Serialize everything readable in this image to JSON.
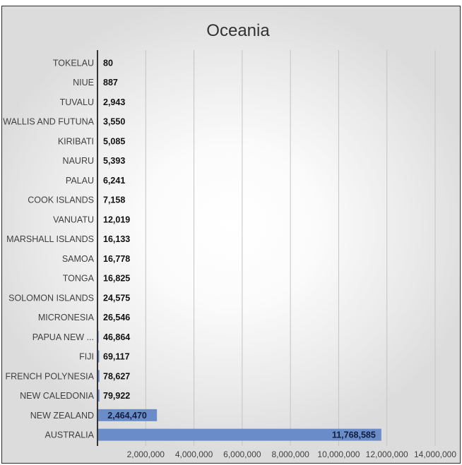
{
  "chart_data": {
    "type": "bar",
    "orientation": "horizontal",
    "title": "Oceania",
    "xlabel": "",
    "ylabel": "",
    "categories": [
      "TOKELAU",
      "NIUE",
      "TUVALU",
      "WALLIS AND FUTUNA",
      "KIRIBATI",
      "NAURU",
      "PALAU",
      "COOK ISLANDS",
      "VANUATU",
      "MARSHALL ISLANDS",
      "SAMOA",
      "TONGA",
      "SOLOMON ISLANDS",
      "MICRONESIA",
      "PAPUA NEW ...",
      "FIJI",
      "FRENCH POLYNESIA",
      "NEW CALEDONIA",
      "NEW ZEALAND",
      "AUSTRALIA"
    ],
    "values": [
      80,
      887,
      2943,
      3550,
      5085,
      5393,
      6241,
      7158,
      12019,
      16133,
      16778,
      16825,
      24575,
      26546,
      46864,
      69117,
      78627,
      79922,
      2464470,
      11768585
    ],
    "data_labels": [
      "80",
      "887",
      "2,943",
      "3,550",
      "5,085",
      "5,393",
      "6,241",
      "7,158",
      "12,019",
      "16,133",
      "16,778",
      "16,825",
      "24,575",
      "26,546",
      "46,864",
      "69,117",
      "78,627",
      "79,922",
      "2,464,470",
      "11,768,585"
    ],
    "xlim": [
      0,
      14000000
    ],
    "x_ticks": [
      2000000,
      4000000,
      6000000,
      8000000,
      10000000,
      12000000,
      14000000
    ],
    "x_tick_labels": [
      "2,000,000",
      "4,000,000",
      "6,000,000",
      "8,000,000",
      "10,000,000",
      "12,000,000",
      "14,000,000"
    ],
    "grid": "vertical",
    "legend": "none",
    "bar_color": "#6a8cc9",
    "axis_color": "#333333",
    "grid_color": "#c4c4c4"
  }
}
